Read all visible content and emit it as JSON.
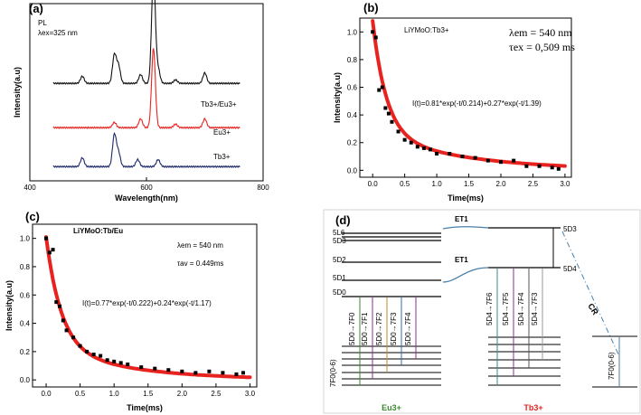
{
  "chart_data": [
    {
      "id": "a",
      "panel_label": "(a)",
      "type": "line",
      "annotation_lines": [
        "PL",
        "λex=325 nm"
      ],
      "xlabel": "Wavelength(nm)",
      "ylabel": "Intensity(a.u)",
      "xlim": [
        400,
        800
      ],
      "x_ticks": [
        "400",
        "600",
        "800"
      ],
      "x_tick_values": [
        400,
        600,
        800
      ],
      "series": [
        {
          "name": "Tb3+/Eu3+",
          "color": "#111111",
          "offset": 0.55,
          "peaks": [
            [
              490,
              0.04
            ],
            [
              545,
              0.16
            ],
            [
              552,
              0.1
            ],
            [
              590,
              0.05
            ],
            [
              612,
              0.62
            ],
            [
              620,
              0.08
            ],
            [
              650,
              0.02
            ],
            [
              700,
              0.06
            ]
          ]
        },
        {
          "name": "Eu3+",
          "color": "#e8231f",
          "offset": 0.3,
          "peaks": [
            [
              545,
              0.03
            ],
            [
              590,
              0.05
            ],
            [
              612,
              0.45
            ],
            [
              650,
              0.02
            ],
            [
              700,
              0.05
            ]
          ]
        },
        {
          "name": "Tb3+",
          "color": "#1f2a6b",
          "offset": 0.08,
          "peaks": [
            [
              490,
              0.05
            ],
            [
              545,
              0.18
            ],
            [
              552,
              0.08
            ],
            [
              585,
              0.04
            ],
            [
              620,
              0.04
            ]
          ]
        }
      ],
      "grid": false
    },
    {
      "id": "b",
      "panel_label": "(b)",
      "type": "scatter",
      "sample": "LiYMoO:Tb3+",
      "param_lines": [
        "λem = 540 nm",
        "τex = 0,509 ms"
      ],
      "fit_label": "I(t)=0.81*exp(-t/0.214)+0.27*exp(-t/1.39)",
      "fit": {
        "a1": 0.81,
        "t1": 0.214,
        "a2": 0.27,
        "t2": 1.39
      },
      "xlabel": "Time(ms)",
      "ylabel": "Intensity(a.u)",
      "xlim": [
        -0.2,
        3.1
      ],
      "ylim": [
        -0.05,
        1.1
      ],
      "x_ticks": [
        "0.0",
        "0.5",
        "1.0",
        "1.5",
        "2.0",
        "2.5",
        "3.0"
      ],
      "y_ticks": [
        "0.0",
        "0.2",
        "0.4",
        "0.6",
        "0.8",
        "1.0"
      ],
      "points_x": [
        0.0,
        0.05,
        0.1,
        0.15,
        0.2,
        0.25,
        0.3,
        0.4,
        0.5,
        0.6,
        0.7,
        0.8,
        0.9,
        1.0,
        1.2,
        1.4,
        1.6,
        1.8,
        2.0,
        2.2,
        2.4,
        2.6,
        2.8,
        2.9
      ],
      "points_y": [
        1.0,
        0.96,
        0.58,
        0.6,
        0.45,
        0.41,
        0.35,
        0.28,
        0.22,
        0.2,
        0.17,
        0.16,
        0.15,
        0.12,
        0.12,
        0.1,
        0.09,
        0.07,
        0.06,
        0.07,
        0.03,
        0.03,
        0.02,
        0.01
      ],
      "grid": false
    },
    {
      "id": "c",
      "panel_label": "(c)",
      "type": "scatter",
      "sample": "LiYMoO:Tb/Eu",
      "param_lines": [
        "λem = 540 nm",
        "τav = 0.449ms"
      ],
      "fit_label": "I(t)=0.77*exp(-t/0.222)+0.24*exp(-t/1.17)",
      "fit": {
        "a1": 0.77,
        "t1": 0.222,
        "a2": 0.24,
        "t2": 1.17
      },
      "xlabel": "Time(ms)",
      "ylabel": "Intensity(a.u)",
      "xlim": [
        -0.2,
        3.1
      ],
      "ylim": [
        -0.05,
        1.1
      ],
      "x_ticks": [
        "0.0",
        "0.5",
        "1.0",
        "1.5",
        "2.0",
        "2.5",
        "3.0"
      ],
      "y_ticks": [
        "0.0",
        "0.2",
        "0.4",
        "0.6",
        "0.8",
        "1.0"
      ],
      "points_x": [
        0.0,
        0.05,
        0.1,
        0.15,
        0.2,
        0.25,
        0.3,
        0.4,
        0.5,
        0.6,
        0.7,
        0.8,
        0.9,
        1.0,
        1.1,
        1.2,
        1.4,
        1.6,
        1.8,
        2.0,
        2.2,
        2.4,
        2.6,
        2.8,
        2.9
      ],
      "points_y": [
        1.0,
        0.9,
        0.92,
        0.55,
        0.52,
        0.42,
        0.35,
        0.3,
        0.24,
        0.2,
        0.18,
        0.17,
        0.14,
        0.13,
        0.12,
        0.11,
        0.09,
        0.08,
        0.07,
        0.06,
        0.05,
        0.06,
        0.05,
        0.04,
        0.05
      ],
      "grid": false
    }
  ],
  "diagram_d": {
    "panel_label": "(d)",
    "eu_levels_upper": [
      "5L6",
      "5D3",
      "5D2",
      "5D1",
      "5D0"
    ],
    "eu_ground": "7F0(0-6)",
    "eu_transitions": [
      "5D0→7F0",
      "5D0→7F1",
      "5D0→7F2",
      "5D0→7F3",
      "5D0→7F4"
    ],
    "eu_label": "Eu3+",
    "eu_color": "#3a8a2e",
    "tb_levels_upper": [
      "5D3",
      "5D4"
    ],
    "tb_ground": "7F0(0-6)",
    "tb_transitions": [
      "5D4→7F6",
      "5D4→7F5",
      "5D4→7F4",
      "5D4→7F3"
    ],
    "tb_label": "Tb3+",
    "tb_color": "#e8231f",
    "et_labels": [
      "ET1",
      "ET1"
    ],
    "cr_label": "CR",
    "arrow_color": "#4a7fa8"
  }
}
